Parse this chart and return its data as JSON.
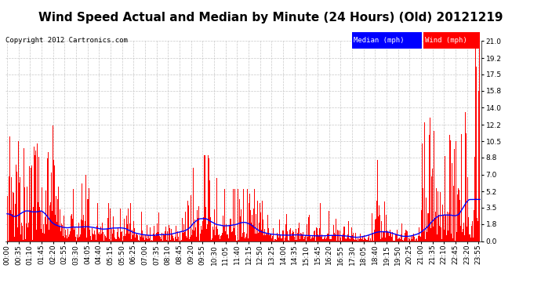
{
  "title": "Wind Speed Actual and Median by Minute (24 Hours) (Old) 20121219",
  "copyright": "Copyright 2012 Cartronics.com",
  "yticks": [
    0.0,
    1.8,
    3.5,
    5.2,
    7.0,
    8.8,
    10.5,
    12.2,
    14.0,
    15.8,
    17.5,
    19.2,
    21.0
  ],
  "ymax": 21.0,
  "ymin": 0.0,
  "background_color": "#ffffff",
  "plot_bg_color": "#ffffff",
  "grid_color": "#bbbbbb",
  "wind_color": "#ff0000",
  "median_color": "#0000ff",
  "legend_median_bg": "#0000ff",
  "legend_wind_bg": "#ff0000",
  "tick_label_fontsize": 6.5,
  "title_fontsize": 11
}
